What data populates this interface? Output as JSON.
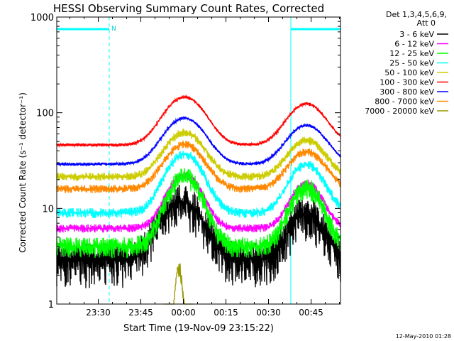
{
  "chart_data": {
    "type": "line",
    "title": "HESSI Observing Summary Count Rates, Corrected",
    "xlabel": "Start Time (19-Nov-09 23:15:22)",
    "ylabel": "Corrected Count Rate (s⁻¹ detector⁻¹)",
    "yscale": "log",
    "ylim": [
      1,
      1000
    ],
    "xlim_minutes": [
      0,
      100
    ],
    "x_ticks": [
      {
        "label": "23:30",
        "t": 14.63
      },
      {
        "label": "23:45",
        "t": 29.63
      },
      {
        "label": "00:00",
        "t": 44.63
      },
      {
        "label": "00:15",
        "t": 59.63
      },
      {
        "label": "00:30",
        "t": 74.63
      },
      {
        "label": "00:45",
        "t": 89.63
      }
    ],
    "y_ticks": [
      {
        "label": "1",
        "v": 1
      },
      {
        "label": "10",
        "v": 10
      },
      {
        "label": "100",
        "v": 100
      },
      {
        "label": "1000",
        "v": 1000
      }
    ],
    "legend": {
      "header": [
        "Det 1,3,4,5,6,9,",
        "Att 0"
      ],
      "position": "right"
    },
    "annotations": {
      "night_flag": "N",
      "timestamp": "12-May-2010 01:28"
    },
    "intervals": [
      {
        "start": 0,
        "end": 18.5,
        "label": "N"
      },
      {
        "start": 82.5,
        "end": 100,
        "label": ""
      }
    ],
    "series": [
      {
        "name": "3 - 6 keV",
        "color": "#000000",
        "base": 2.9,
        "peaks": [
          [
            44,
            9,
            9
          ],
          [
            88,
            6,
            7.5
          ]
        ],
        "noise": 0.5,
        "min_t": 0
      },
      {
        "name": "6 - 12 keV",
        "color": "#ff00ff",
        "base": 6.2,
        "peaks": [
          [
            45,
            16,
            7.5
          ],
          [
            88,
            12,
            7
          ]
        ],
        "noise": 0.1,
        "min_t": 0
      },
      {
        "name": "12 - 25 keV",
        "color": "#00ff00",
        "base": 4.0,
        "peaks": [
          [
            45,
            17.5,
            7.5
          ],
          [
            88,
            12.5,
            7
          ]
        ],
        "noise": 0.25,
        "min_t": 0
      },
      {
        "name": "25 - 50 keV",
        "color": "#00ffff",
        "base": 9.0,
        "peaks": [
          [
            45,
            28,
            8
          ],
          [
            88,
            20,
            7.5
          ]
        ],
        "noise": 0.12,
        "min_t": 0
      },
      {
        "name": "50 - 100 keV",
        "color": "#cccc00",
        "base": 21.5,
        "peaks": [
          [
            45,
            41,
            8.5
          ],
          [
            88,
            30,
            8
          ]
        ],
        "noise": 0.1,
        "min_t": 0
      },
      {
        "name": "100 - 300 keV",
        "color": "#ff0000",
        "base": 46.0,
        "peaks": [
          [
            45,
            100,
            9
          ],
          [
            88,
            78,
            8.5
          ]
        ],
        "noise": 0.04,
        "min_t": 0
      },
      {
        "name": "300 - 800 keV",
        "color": "#0000ff",
        "base": 29.0,
        "peaks": [
          [
            45,
            59,
            9
          ],
          [
            88,
            45,
            8.5
          ]
        ],
        "noise": 0.04,
        "min_t": 0
      },
      {
        "name": "800 - 7000 keV",
        "color": "#ff8800",
        "base": 16.0,
        "peaks": [
          [
            45,
            31,
            8.5
          ],
          [
            88,
            23,
            8
          ]
        ],
        "noise": 0.1,
        "min_t": 0
      },
      {
        "name": "7000 - 20000 keV",
        "color": "#999900",
        "base": 0.5,
        "peaks": [
          [
            43,
            1.9,
            1.5
          ]
        ],
        "noise": 0.2,
        "min_t": 38,
        "max_t": 48
      }
    ]
  }
}
